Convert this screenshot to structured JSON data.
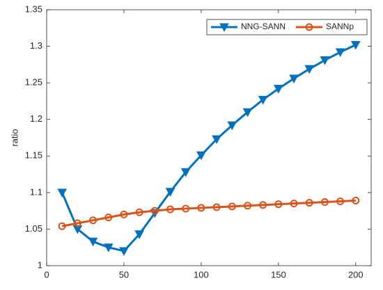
{
  "chart_data": {
    "type": "line",
    "ylabel": "ratio",
    "x": [
      10,
      20,
      30,
      40,
      50,
      60,
      70,
      80,
      90,
      100,
      110,
      120,
      130,
      140,
      150,
      160,
      170,
      180,
      190,
      200
    ],
    "series": [
      {
        "name": "NNG-SANN",
        "color": "#0072bd",
        "marker": "triangle-down",
        "values": [
          1.1,
          1.05,
          1.033,
          1.025,
          1.02,
          1.043,
          1.072,
          1.101,
          1.128,
          1.151,
          1.173,
          1.192,
          1.21,
          1.227,
          1.242,
          1.256,
          1.269,
          1.281,
          1.292,
          1.302
        ]
      },
      {
        "name": "SANNp",
        "color": "#d95319",
        "marker": "circle",
        "values": [
          1.054,
          1.058,
          1.062,
          1.066,
          1.07,
          1.073,
          1.075,
          1.077,
          1.078,
          1.079,
          1.08,
          1.081,
          1.082,
          1.083,
          1.084,
          1.085,
          1.086,
          1.087,
          1.088,
          1.089
        ]
      }
    ],
    "xlim": [
      0,
      210
    ],
    "xticks": [
      0,
      50,
      100,
      150,
      200
    ],
    "ylim": [
      1,
      1.35
    ],
    "yticks": [
      1,
      1.05,
      1.1,
      1.15,
      1.2,
      1.25,
      1.3,
      1.35
    ],
    "legend": "top-right"
  }
}
